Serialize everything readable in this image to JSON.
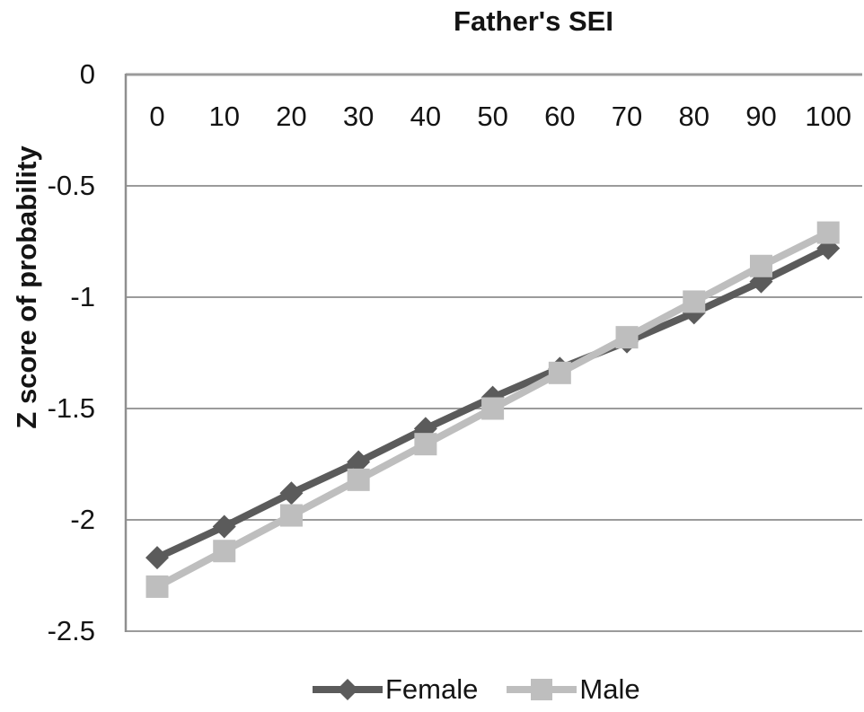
{
  "chart_data": {
    "type": "line",
    "title": "Father's SEI",
    "xlabel": "Father's SEI",
    "ylabel": "Z score of probability",
    "x": [
      0,
      10,
      20,
      30,
      40,
      50,
      60,
      70,
      80,
      90,
      100
    ],
    "x_tick_labels": [
      "0",
      "10",
      "20",
      "30",
      "40",
      "50",
      "60",
      "70",
      "80",
      "90",
      "100"
    ],
    "yticks": [
      0,
      -0.5,
      -1,
      -1.5,
      -2,
      -2.5
    ],
    "ytick_labels": [
      "0",
      "-0.5",
      "-1",
      "-1.5",
      "-2",
      "-2.5"
    ],
    "ylim": [
      -2.5,
      0
    ],
    "grid": "horizontal",
    "legend_position": "bottom-center",
    "series": [
      {
        "name": "Female",
        "marker": "diamond",
        "color": "#5b5b5b",
        "values": [
          -2.17,
          -2.03,
          -1.88,
          -1.74,
          -1.59,
          -1.45,
          -1.32,
          -1.2,
          -1.07,
          -0.93,
          -0.78
        ]
      },
      {
        "name": "Male",
        "marker": "square",
        "color": "#bebebe",
        "values": [
          -2.3,
          -2.14,
          -1.98,
          -1.82,
          -1.66,
          -1.5,
          -1.34,
          -1.18,
          -1.02,
          -0.86,
          -0.71
        ]
      }
    ],
    "colors": {
      "background": "#ffffff",
      "gridline": "#9b9b9b",
      "axis": "#8f8f8f",
      "text": "#141414"
    }
  }
}
